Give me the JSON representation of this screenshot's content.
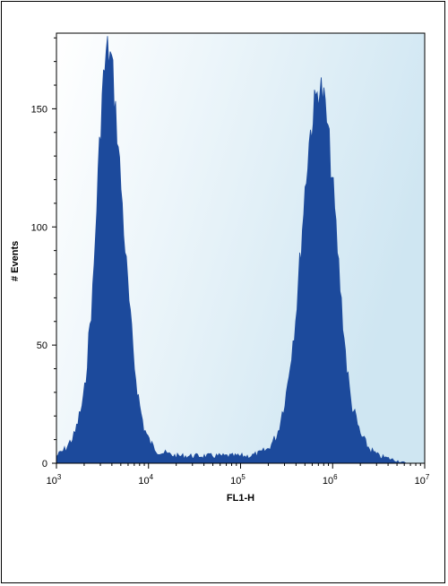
{
  "chart_data": {
    "type": "area",
    "title": "",
    "xlabel": "FL1-H",
    "ylabel": "# Events",
    "x_scale": "log",
    "xlim": [
      1000,
      10000000
    ],
    "ylim": [
      0,
      182
    ],
    "x_ticks": [
      {
        "base": "10",
        "exp": "3",
        "value": 1000
      },
      {
        "base": "10",
        "exp": "4",
        "value": 10000
      },
      {
        "base": "10",
        "exp": "5",
        "value": 100000
      },
      {
        "base": "10",
        "exp": "6",
        "value": 1000000
      },
      {
        "base": "10",
        "exp": "7",
        "value": 10000000
      }
    ],
    "y_ticks": [
      "0",
      "50",
      "100",
      "150"
    ],
    "fill_color": "#1c4a9c",
    "background_gradient": [
      "#ffffff",
      "#cfe6f2"
    ],
    "series": [
      {
        "x": [
          1000,
          1260,
          1580,
          2000,
          2510,
          2820,
          3160,
          3550,
          3980,
          4470,
          5010,
          5620,
          6310,
          7080,
          7940,
          8910,
          10000,
          11200,
          12600,
          15800,
          20000,
          31600,
          50100,
          79400,
          100000,
          126000,
          158000,
          200000,
          251000,
          316000,
          398000,
          447000,
          501000,
          562000,
          631000,
          708000,
          794000,
          891000,
          1000000,
          1120000,
          1260000,
          1410000,
          1580000,
          2000000,
          2510000,
          3160000,
          3980000,
          5010000,
          6310000,
          10000000
        ],
        "y": [
          3,
          6,
          12,
          28,
          75,
          120,
          158,
          175,
          170,
          145,
          118,
          88,
          62,
          40,
          25,
          15,
          10,
          7,
          5,
          4,
          3,
          3,
          3,
          3,
          3,
          3,
          4,
          6,
          12,
          30,
          62,
          88,
          115,
          138,
          150,
          160,
          155,
          140,
          118,
          92,
          65,
          42,
          26,
          12,
          6,
          3,
          2,
          1,
          0,
          0
        ]
      }
    ]
  }
}
